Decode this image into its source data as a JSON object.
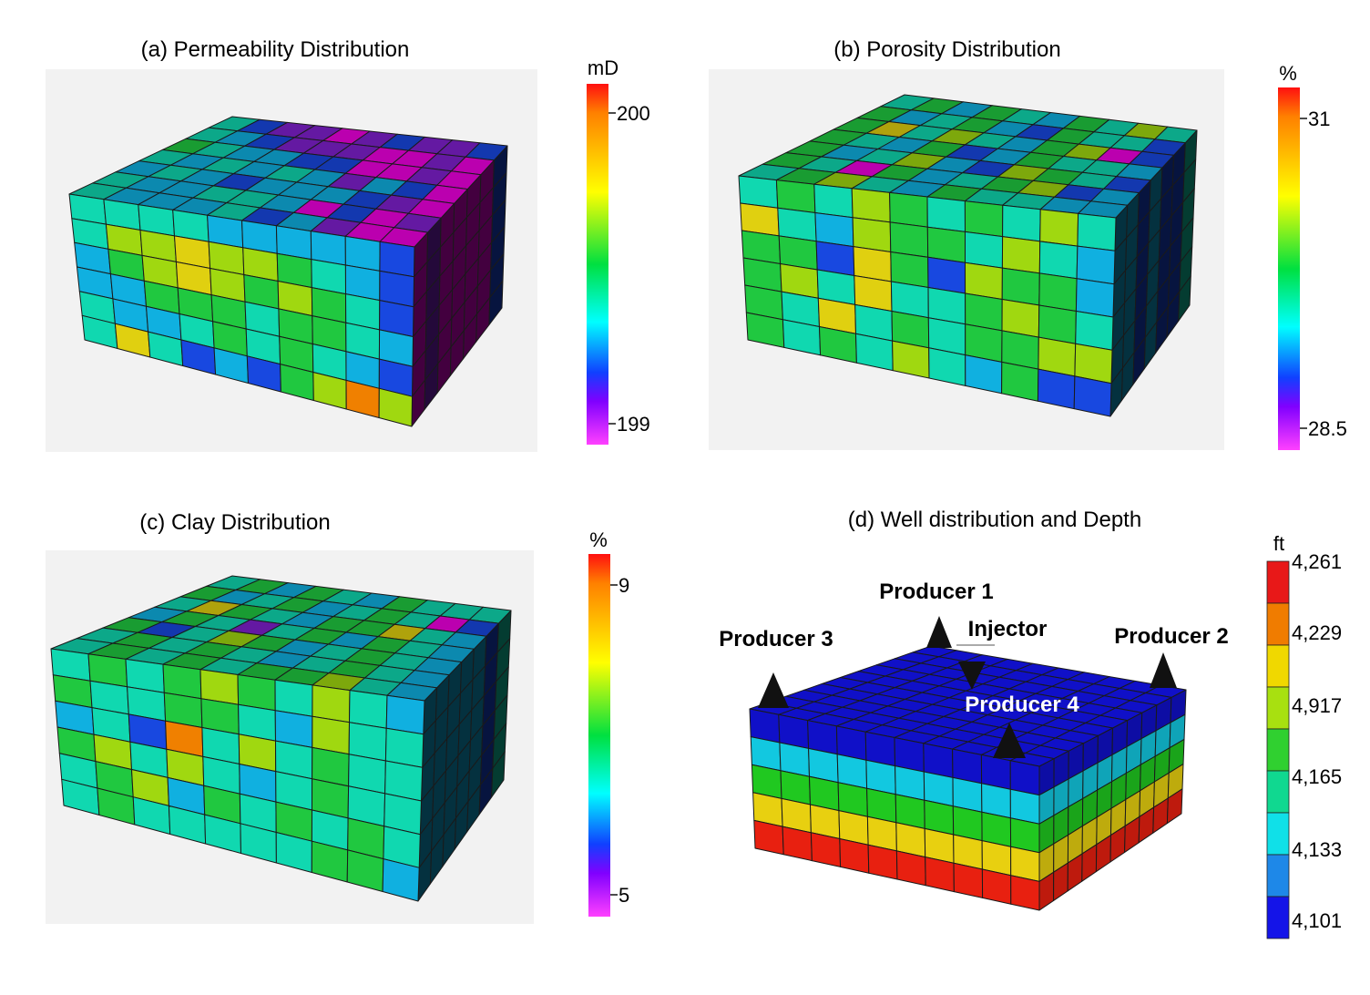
{
  "panels": {
    "a": {
      "title": "(a) Permeability  Distribution",
      "unit": "mD",
      "tick_max": "200",
      "tick_min": "199",
      "grid": [
        [
          4,
          2,
          1,
          1,
          0,
          1,
          2,
          1,
          1,
          2
        ],
        [
          4,
          3,
          2,
          1,
          1,
          1,
          0,
          0,
          1,
          0
        ],
        [
          5,
          4,
          3,
          3,
          2,
          2,
          0,
          0,
          1,
          0
        ],
        [
          4,
          3,
          4,
          3,
          4,
          3,
          1,
          3,
          2,
          0
        ],
        [
          3,
          4,
          3,
          2,
          3,
          3,
          3,
          2,
          1,
          0
        ],
        [
          4,
          3,
          3,
          4,
          4,
          3,
          0,
          2,
          0,
          1
        ],
        [
          4,
          3,
          3,
          3,
          4,
          2,
          3,
          1,
          0,
          0
        ]
      ],
      "front": [
        [
          4,
          4,
          4,
          4,
          3,
          3,
          3,
          3,
          3,
          2
        ],
        [
          4,
          6,
          6,
          7,
          6,
          6,
          5,
          4,
          3,
          2
        ],
        [
          3,
          5,
          6,
          7,
          6,
          5,
          6,
          5,
          4,
          2
        ],
        [
          3,
          3,
          5,
          5,
          5,
          4,
          5,
          5,
          4,
          3
        ],
        [
          4,
          3,
          3,
          4,
          5,
          4,
          5,
          4,
          3,
          2
        ],
        [
          4,
          7,
          4,
          2,
          3,
          2,
          5,
          6,
          8,
          6
        ]
      ]
    },
    "b": {
      "title": "(b) Porosity Distribution",
      "unit": "%",
      "tick_max": "31",
      "tick_min": "28.5",
      "grid": [
        [
          4,
          5,
          3,
          5,
          4,
          3,
          5,
          4,
          6,
          4
        ],
        [
          5,
          3,
          4,
          5,
          3,
          2,
          5,
          4,
          4,
          2
        ],
        [
          5,
          7,
          4,
          6,
          4,
          3,
          5,
          6,
          0,
          2
        ],
        [
          5,
          4,
          3,
          5,
          2,
          3,
          5,
          4,
          4,
          3
        ],
        [
          5,
          3,
          4,
          6,
          3,
          2,
          6,
          5,
          4,
          2
        ],
        [
          5,
          4,
          0,
          5,
          3,
          4,
          5,
          6,
          2,
          3
        ],
        [
          4,
          5,
          6,
          4,
          3,
          5,
          4,
          4,
          3,
          3
        ]
      ],
      "front": [
        [
          4,
          5,
          4,
          6,
          5,
          4,
          5,
          4,
          6,
          4
        ],
        [
          7,
          4,
          3,
          6,
          5,
          5,
          4,
          6,
          4,
          3
        ],
        [
          5,
          5,
          2,
          7,
          5,
          2,
          6,
          5,
          5,
          3
        ],
        [
          5,
          6,
          4,
          7,
          4,
          4,
          5,
          6,
          5,
          4
        ],
        [
          5,
          4,
          7,
          4,
          5,
          4,
          5,
          5,
          6,
          6
        ],
        [
          5,
          4,
          5,
          4,
          6,
          4,
          3,
          5,
          2,
          2
        ]
      ]
    },
    "c": {
      "title": "(c) Clay Distribution",
      "unit": "%",
      "tick_max": "9",
      "tick_min": "5",
      "grid": [
        [
          4,
          5,
          3,
          5,
          4,
          3,
          5,
          4,
          4,
          4
        ],
        [
          5,
          3,
          4,
          5,
          3,
          4,
          5,
          4,
          0,
          2
        ],
        [
          4,
          7,
          5,
          4,
          3,
          5,
          5,
          7,
          4,
          3
        ],
        [
          3,
          5,
          4,
          1,
          4,
          5,
          3,
          5,
          4,
          3
        ],
        [
          5,
          2,
          4,
          6,
          5,
          3,
          4,
          5,
          4,
          3
        ],
        [
          4,
          5,
          4,
          5,
          4,
          3,
          4,
          5,
          4,
          3
        ],
        [
          4,
          5,
          4,
          5,
          4,
          5,
          5,
          6,
          4,
          3
        ]
      ],
      "front": [
        [
          4,
          5,
          4,
          5,
          6,
          5,
          4,
          6,
          4,
          3
        ],
        [
          5,
          4,
          4,
          5,
          5,
          4,
          3,
          6,
          4,
          4
        ],
        [
          3,
          4,
          2,
          8,
          4,
          6,
          4,
          5,
          4,
          4
        ],
        [
          5,
          6,
          4,
          6,
          4,
          3,
          4,
          5,
          4,
          4
        ],
        [
          4,
          5,
          6,
          3,
          5,
          4,
          5,
          4,
          5,
          4
        ],
        [
          4,
          5,
          4,
          4,
          4,
          4,
          4,
          5,
          5,
          3
        ]
      ]
    },
    "d": {
      "title": "(d) Well distribution  and  Depth",
      "unit": "ft",
      "legend_labels": [
        "4,261",
        "4,229",
        "4,917",
        "4,165",
        "4,133",
        "4,101"
      ],
      "layer_colors": [
        "#1010c8",
        "#12c8e0",
        "#20c820",
        "#e8d010",
        "#e82010"
      ],
      "legend_colors": [
        "#e81818",
        "#f07c00",
        "#f0d800",
        "#a8e010",
        "#30d030",
        "#10d890",
        "#10e0e8",
        "#1e88e8",
        "#1414e8"
      ],
      "wells": {
        "producer1": "Producer 1",
        "producer2": "Producer 2",
        "producer3": "Producer 3",
        "producer4": "Producer 4",
        "injector": "Injector"
      }
    }
  },
  "colors": {
    "scale": [
      "#f000e0",
      "#8020d0",
      "#1848e0",
      "#10b0e0",
      "#10d8b0",
      "#20c840",
      "#a0d810",
      "#e0d010",
      "#f08000",
      "#f02010"
    ],
    "panel_bg": "#f2f2f2",
    "edge": "#1a1a1a"
  }
}
